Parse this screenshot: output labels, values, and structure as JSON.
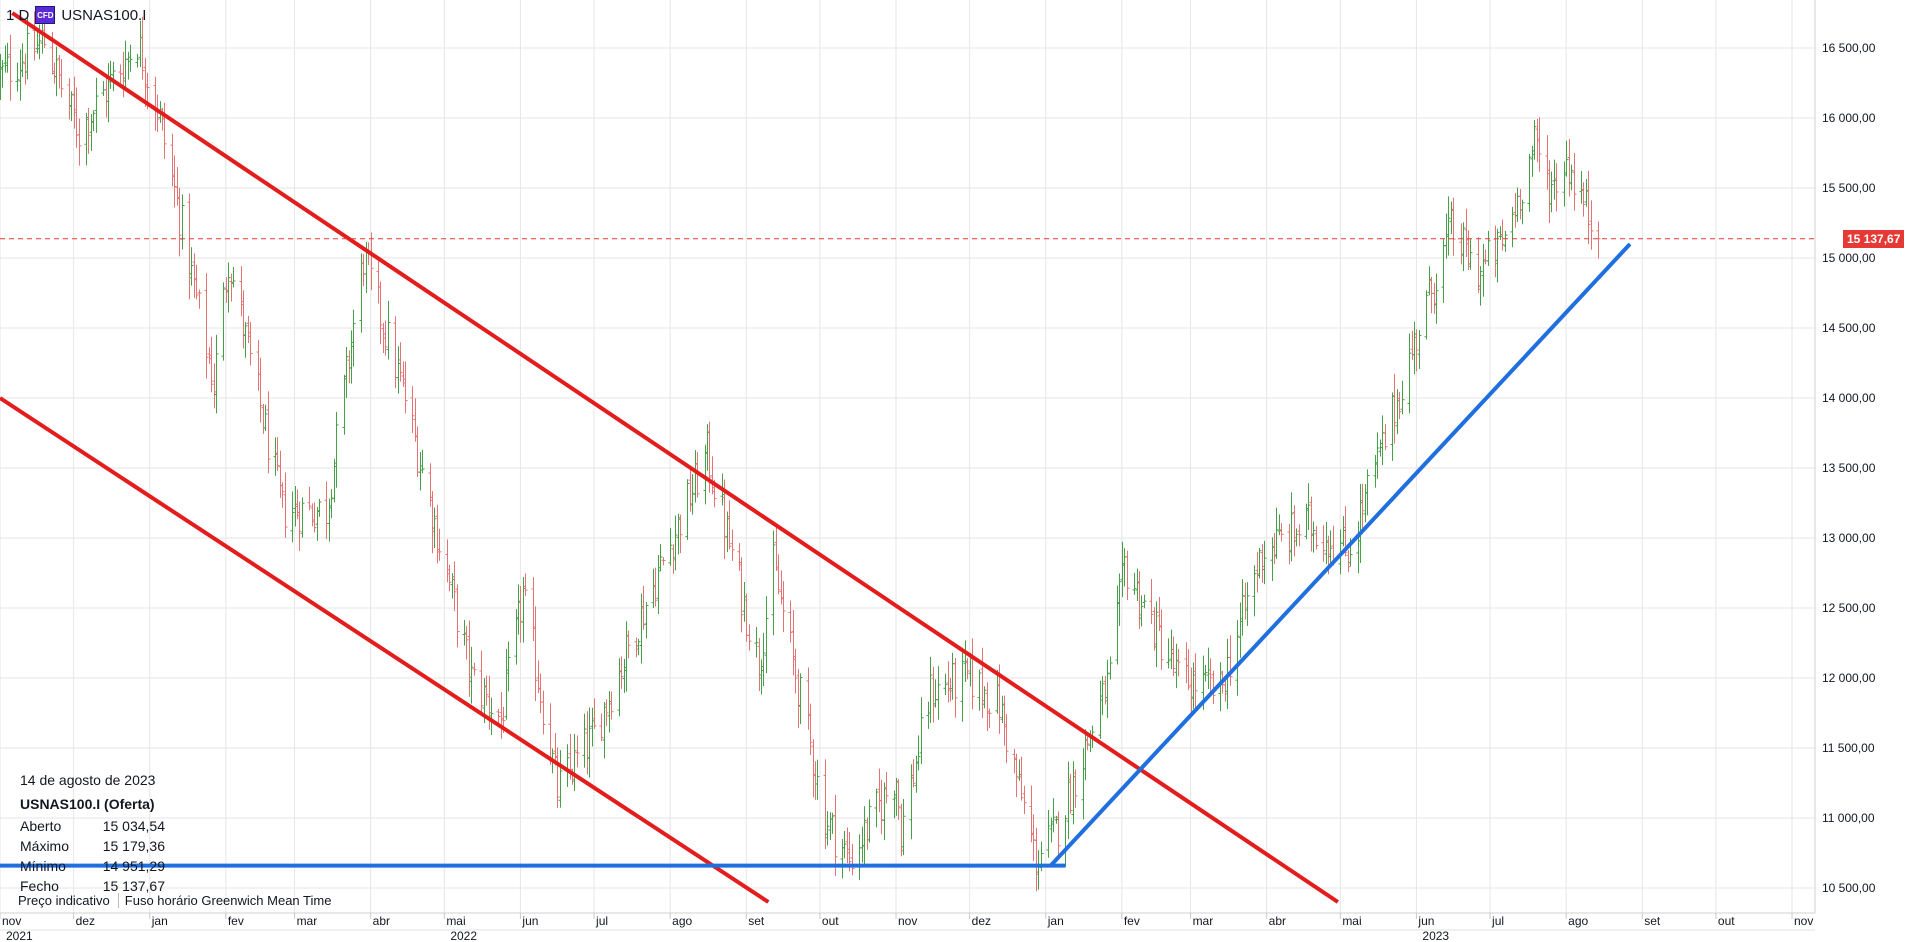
{
  "header": {
    "interval": "1 D",
    "cfd_badge": "CFD",
    "symbol": "USNAS100.I"
  },
  "info": {
    "date": "14 de agosto de 2023",
    "instrument": "USNAS100.I (Oferta)",
    "rows": [
      {
        "label": "Aberto",
        "value": "15 034,54"
      },
      {
        "label": "Máximo",
        "value": "15 179,36"
      },
      {
        "label": "Mínimo",
        "value": "14 951,29"
      },
      {
        "label": "Fecho",
        "value": "15 137,67"
      }
    ]
  },
  "footer": {
    "indicative": "Preço indicativo",
    "timezone_label": "Fuso horário",
    "timezone_value": "Greenwich Mean Time"
  },
  "current_price_label": "15 137,67",
  "colors": {
    "up": "#43a047",
    "down": "#e57373",
    "channel": "#e31c1c",
    "support": "#1f6fdf",
    "price_line": "#e53935",
    "grid": "#e6e6e6"
  },
  "chart_data": {
    "type": "ohlc",
    "symbol": "USNAS100.I",
    "interval": "1 D",
    "ylim": [
      10400,
      16750
    ],
    "y_ticks": [
      {
        "value": 10500,
        "label": "10 500,00"
      },
      {
        "value": 11000,
        "label": "11 000,00"
      },
      {
        "value": 11500,
        "label": "11 500,00"
      },
      {
        "value": 12000,
        "label": "12 000,00"
      },
      {
        "value": 12500,
        "label": "12 500,00"
      },
      {
        "value": 13000,
        "label": "13 000,00"
      },
      {
        "value": 13500,
        "label": "13 500,00"
      },
      {
        "value": 14000,
        "label": "14 000,00"
      },
      {
        "value": 14500,
        "label": "14 500,00"
      },
      {
        "value": 15000,
        "label": "15 000,00"
      },
      {
        "value": 15500,
        "label": "15 500,00"
      },
      {
        "value": 16000,
        "label": "16 000,00"
      },
      {
        "value": 16500,
        "label": "16 500,00"
      }
    ],
    "x_months": [
      {
        "date": "2021-11",
        "label": "nov"
      },
      {
        "date": "2021-12",
        "label": "dez"
      },
      {
        "date": "2022-01",
        "label": "jan"
      },
      {
        "date": "2022-02",
        "label": "fev"
      },
      {
        "date": "2022-03",
        "label": "mar"
      },
      {
        "date": "2022-04",
        "label": "abr"
      },
      {
        "date": "2022-05",
        "label": "mai"
      },
      {
        "date": "2022-06",
        "label": "jun"
      },
      {
        "date": "2022-07",
        "label": "jul"
      },
      {
        "date": "2022-08",
        "label": "ago"
      },
      {
        "date": "2022-09",
        "label": "set"
      },
      {
        "date": "2022-10",
        "label": "out"
      },
      {
        "date": "2022-11",
        "label": "nov"
      },
      {
        "date": "2022-12",
        "label": "dez"
      },
      {
        "date": "2023-01",
        "label": "jan"
      },
      {
        "date": "2023-02",
        "label": "fev"
      },
      {
        "date": "2023-03",
        "label": "mar"
      },
      {
        "date": "2023-04",
        "label": "abr"
      },
      {
        "date": "2023-05",
        "label": "mai"
      },
      {
        "date": "2023-06",
        "label": "jun"
      },
      {
        "date": "2023-07",
        "label": "jul"
      },
      {
        "date": "2023-08",
        "label": "ago"
      },
      {
        "date": "2023-09",
        "label": "set"
      },
      {
        "date": "2023-10",
        "label": "out"
      },
      {
        "date": "2023-11",
        "label": "nov"
      }
    ],
    "x_years": [
      {
        "date": "2021-11",
        "label": "2021"
      },
      {
        "date": "2022-05",
        "label": "2022"
      },
      {
        "date": "2023-06",
        "label": "2023"
      }
    ],
    "last_price": 15137.67,
    "price_path": [
      {
        "date": "2021-11-01",
        "close": 16300
      },
      {
        "date": "2021-11-19",
        "close": 16550
      },
      {
        "date": "2021-12-03",
        "close": 15900
      },
      {
        "date": "2021-12-27",
        "close": 16550
      },
      {
        "date": "2022-01-05",
        "close": 16000
      },
      {
        "date": "2022-01-27",
        "close": 14100
      },
      {
        "date": "2022-02-02",
        "close": 15000
      },
      {
        "date": "2022-02-24",
        "close": 13200
      },
      {
        "date": "2022-03-14",
        "close": 13200
      },
      {
        "date": "2022-03-29",
        "close": 15000
      },
      {
        "date": "2022-04-15",
        "close": 14000
      },
      {
        "date": "2022-05-12",
        "close": 12000
      },
      {
        "date": "2022-05-24",
        "close": 11700
      },
      {
        "date": "2022-06-02",
        "close": 12600
      },
      {
        "date": "2022-06-16",
        "close": 11200
      },
      {
        "date": "2022-07-01",
        "close": 11600
      },
      {
        "date": "2022-07-19",
        "close": 12400
      },
      {
        "date": "2022-08-16",
        "close": 13600
      },
      {
        "date": "2022-09-06",
        "close": 12100
      },
      {
        "date": "2022-09-12",
        "close": 12800
      },
      {
        "date": "2022-10-03",
        "close": 11000
      },
      {
        "date": "2022-10-13",
        "close": 10700
      },
      {
        "date": "2022-11-01",
        "close": 11300
      },
      {
        "date": "2022-11-03",
        "close": 10900
      },
      {
        "date": "2022-11-15",
        "close": 11900
      },
      {
        "date": "2022-12-01",
        "close": 12000
      },
      {
        "date": "2022-12-13",
        "close": 11800
      },
      {
        "date": "2022-12-28",
        "close": 10700
      },
      {
        "date": "2023-01-05",
        "close": 10900
      },
      {
        "date": "2023-01-27",
        "close": 12000
      },
      {
        "date": "2023-02-02",
        "close": 12800
      },
      {
        "date": "2023-02-24",
        "close": 12000
      },
      {
        "date": "2023-03-13",
        "close": 11900
      },
      {
        "date": "2023-03-30",
        "close": 12900
      },
      {
        "date": "2023-04-18",
        "close": 13100
      },
      {
        "date": "2023-05-04",
        "close": 12900
      },
      {
        "date": "2023-05-19",
        "close": 13700
      },
      {
        "date": "2023-06-02",
        "close": 14500
      },
      {
        "date": "2023-06-15",
        "close": 15200
      },
      {
        "date": "2023-06-26",
        "close": 14900
      },
      {
        "date": "2023-07-06",
        "close": 15100
      },
      {
        "date": "2023-07-19",
        "close": 15800
      },
      {
        "date": "2023-07-26",
        "close": 15500
      },
      {
        "date": "2023-08-01",
        "close": 15700
      },
      {
        "date": "2023-08-14",
        "close": 15137.67
      }
    ],
    "trendlines": [
      {
        "name": "channel-upper",
        "color": "red",
        "start": {
          "date": "2021-11-06",
          "value": 16750
        },
        "end": {
          "date": "2023-04-30",
          "value": 10400
        }
      },
      {
        "name": "channel-lower",
        "color": "red",
        "start": {
          "date": "2021-11-01",
          "value": 14000
        },
        "end": {
          "date": "2022-09-10",
          "value": 10400
        }
      },
      {
        "name": "support-horizontal",
        "color": "blue",
        "start": {
          "date": "2021-11-01",
          "value": 10660
        },
        "end": {
          "date": "2023-01-09",
          "value": 10660
        }
      },
      {
        "name": "support-rising",
        "color": "blue",
        "start": {
          "date": "2023-01-03",
          "value": 10660
        },
        "end": {
          "date": "2023-08-27",
          "value": 15100
        }
      }
    ]
  }
}
